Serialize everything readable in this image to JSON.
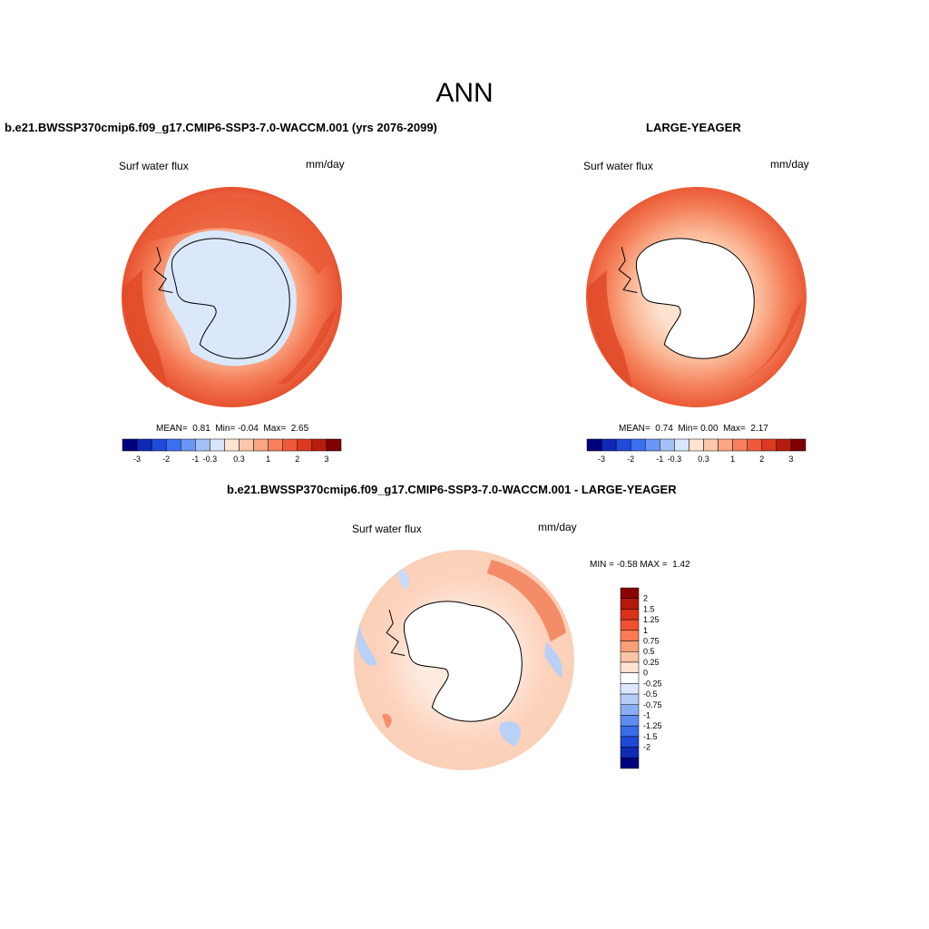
{
  "page": {
    "title": "ANN"
  },
  "panels": [
    {
      "title": "b.e21.BWSSP370cmip6.f09_g17.CMIP6-SSP3-7.0-WACCM.001 (yrs 2076-2099)",
      "variable": "Surf water flux",
      "units": "mm/day",
      "stats": {
        "mean_label": "MEAN=",
        "mean": "0.81",
        "min_label": "Min=",
        "min": "-0.04",
        "max_label": "Max=",
        "max": "2.65"
      }
    },
    {
      "title": "LARGE-YEAGER",
      "variable": "Surf water flux",
      "units": "mm/day",
      "stats": {
        "mean_label": "MEAN=",
        "mean": "0.74",
        "min_label": "Min=",
        "min": "0.00",
        "max_label": "Max=",
        "max": "2.17"
      }
    },
    {
      "title": "b.e21.BWSSP370cmip6.f09_g17.CMIP6-SSP3-7.0-WACCM.001 - LARGE-YEAGER",
      "variable": "Surf water flux",
      "units": "mm/day",
      "stats": {
        "min_label": "MIN =",
        "min": "-0.58",
        "max_label": "MAX =",
        "max": "1.42"
      }
    }
  ],
  "colorbars": {
    "horizontal": {
      "colors": [
        "#00007f",
        "#0d29b5",
        "#1f4bd8",
        "#3b6ef0",
        "#6a96f5",
        "#a3c1f8",
        "#d8e6fb",
        "#fde4d3",
        "#fcc7aa",
        "#fba582",
        "#f6805e",
        "#ee5a3a",
        "#dc3a20",
        "#b71d0f",
        "#7e0000"
      ],
      "ticks": [
        "-3",
        "-2",
        "-1",
        "-0.3",
        "0.3",
        "1",
        "2",
        "3"
      ]
    },
    "vertical": {
      "colors": [
        "#8b0000",
        "#b21a0c",
        "#d8321b",
        "#ef5231",
        "#f97b55",
        "#fb9f7b",
        "#fcc3a4",
        "#fde3d2",
        "#ffffff",
        "#dbe8fc",
        "#b4cdf8",
        "#8aaef4",
        "#5e8cf0",
        "#3a6be9",
        "#2048d6",
        "#0d2bb5",
        "#00007f"
      ],
      "ticks": [
        "2",
        "1.5",
        "1.25",
        "1",
        "0.75",
        "0.5",
        "0.25",
        "0",
        "-0.25",
        "-0.5",
        "-0.75",
        "-1",
        "-1.25",
        "-1.5",
        "-2"
      ]
    }
  }
}
